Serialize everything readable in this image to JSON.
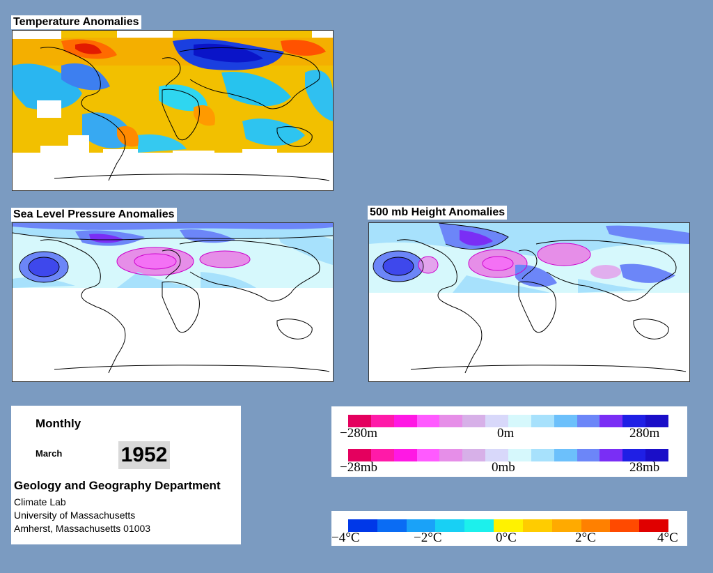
{
  "maps": {
    "temperature": {
      "title": "Temperature Anomalies"
    },
    "slp": {
      "title": "Sea Level Pressure Anomalies"
    },
    "height500": {
      "title": "500 mb Height Anomalies"
    }
  },
  "info": {
    "period": "Monthly",
    "month": "March",
    "year": "1952",
    "department": "Geology and Geography Department",
    "lab": "Climate Lab",
    "university": "University of Massachusetts",
    "address": "Amherst, Massachusetts 01003"
  },
  "legend_height": {
    "labels": [
      "−280m",
      "0m",
      "280m"
    ],
    "colors": [
      "#e4005e",
      "#ff1aa8",
      "#ff18e4",
      "#ff5aff",
      "#e68ee8",
      "#d7b0e8",
      "#d8d8fa",
      "#d6f8fc",
      "#a7e1fc",
      "#6cc0fb",
      "#6c86f8",
      "#7a2ef5",
      "#1f1fe5",
      "#1a0ec8"
    ]
  },
  "legend_pressure": {
    "labels": [
      "−28mb",
      "0mb",
      "28mb"
    ],
    "colors": [
      "#e4005e",
      "#ff1aa8",
      "#ff18e4",
      "#ff5aff",
      "#e68ee8",
      "#d7b0e8",
      "#d8d8fa",
      "#d6f8fc",
      "#a7e1fc",
      "#6cc0fb",
      "#6c86f8",
      "#7a2ef5",
      "#1f1fe5",
      "#1a0ec8"
    ]
  },
  "legend_temperature": {
    "labels": [
      "−4°C",
      "−2°C",
      "0°C",
      "2°C",
      "4°C"
    ],
    "colors": [
      "#0038e8",
      "#0a6cf4",
      "#1aa2f8",
      "#18d0f4",
      "#1cf0ec",
      "#fff200",
      "#ffcc00",
      "#ffaa00",
      "#ff8000",
      "#ff4a00",
      "#e00000"
    ]
  }
}
